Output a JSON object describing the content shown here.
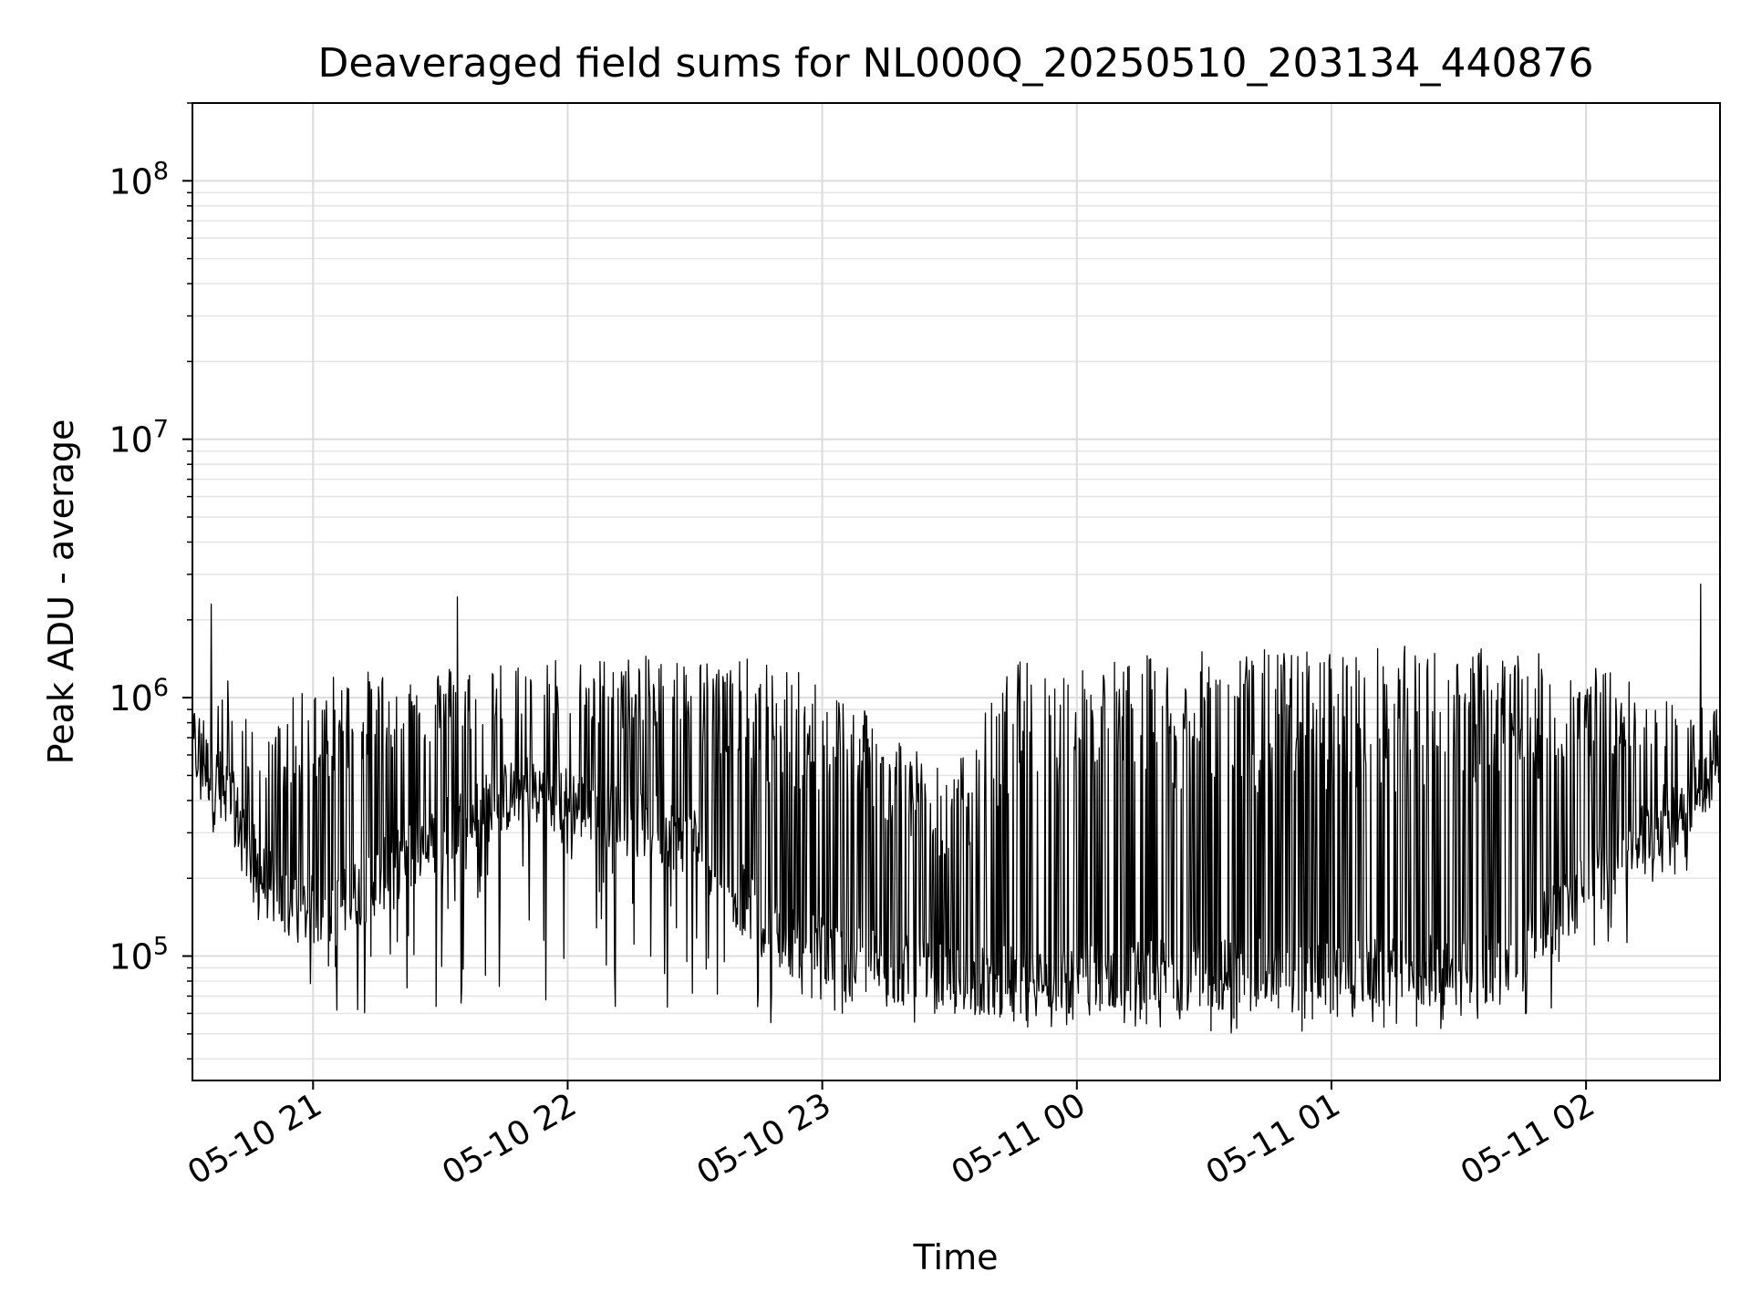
{
  "chart_data": {
    "type": "line",
    "title": "Deaveraged field sums for NL000Q_20250510_203134_440876",
    "xlabel": "Time",
    "ylabel": "Peak ADU - average",
    "x_start": "2025-05-10 20:31:34",
    "x_end": "2025-05-11 02:31:34",
    "xlim": [
      "2025-05-10 20:31:34",
      "2025-05-11 02:31:34"
    ],
    "ylim": [
      33000,
      200000000
    ],
    "yscale": "log",
    "grid": true,
    "line_color": "#000000",
    "x_ticks": [
      {
        "t": "2025-05-10 21:00",
        "label": "05-10 21"
      },
      {
        "t": "2025-05-10 22:00",
        "label": "05-10 22"
      },
      {
        "t": "2025-05-10 23:00",
        "label": "05-10 23"
      },
      {
        "t": "2025-05-11 00:00",
        "label": "05-11 00"
      },
      {
        "t": "2025-05-11 01:00",
        "label": "05-11 01"
      },
      {
        "t": "2025-05-11 02:00",
        "label": "05-11 02"
      }
    ],
    "y_ticks": [
      {
        "v": 100000,
        "base": "10",
        "exp": "5"
      },
      {
        "v": 1000000,
        "base": "10",
        "exp": "6"
      },
      {
        "v": 10000000,
        "base": "10",
        "exp": "7"
      },
      {
        "v": 100000000,
        "base": "10",
        "exp": "8"
      }
    ],
    "series": [
      {
        "envelope": [
          {
            "t": "2025-05-10 20:31",
            "baseline": 650000,
            "peak": 850000,
            "low": 380000
          },
          {
            "t": "2025-05-10 20:40",
            "baseline": 420000,
            "peak": 1200000,
            "low": 230000
          },
          {
            "t": "2025-05-10 20:48",
            "baseline": 200000,
            "peak": 650000,
            "low": 120000
          },
          {
            "t": "2025-05-10 20:55",
            "baseline": 150000,
            "peak": 1000000,
            "low": 90000
          },
          {
            "t": "2025-05-10 21:05",
            "baseline": 150000,
            "peak": 1250000,
            "low": 60000
          },
          {
            "t": "2025-05-10 21:30",
            "baseline": 300000,
            "peak": 1350000,
            "low": 60000
          },
          {
            "t": "2025-05-10 21:50",
            "baseline": 450000,
            "peak": 1450000,
            "low": 70000
          },
          {
            "t": "2025-05-10 22:10",
            "baseline": 350000,
            "peak": 1450000,
            "low": 60000
          },
          {
            "t": "2025-05-10 22:30",
            "baseline": 280000,
            "peak": 1450000,
            "low": 65000
          },
          {
            "t": "2025-05-10 22:48",
            "baseline": 120000,
            "peak": 1400000,
            "low": 55000
          },
          {
            "t": "2025-05-10 23:10",
            "baseline": 95000,
            "peak": 1000000,
            "low": 60000
          },
          {
            "t": "2025-05-10 23:30",
            "baseline": 80000,
            "peak": 500000,
            "low": 52000
          },
          {
            "t": "2025-05-10 23:45",
            "baseline": 80000,
            "peak": 1400000,
            "low": 50000
          },
          {
            "t": "2025-05-11 00:10",
            "baseline": 85000,
            "peak": 1450000,
            "low": 50000
          },
          {
            "t": "2025-05-11 00:40",
            "baseline": 85000,
            "peak": 1550000,
            "low": 50000
          },
          {
            "t": "2025-05-11 01:10",
            "baseline": 85000,
            "peak": 1600000,
            "low": 50000
          },
          {
            "t": "2025-05-11 01:40",
            "baseline": 90000,
            "peak": 1600000,
            "low": 52000
          },
          {
            "t": "2025-05-11 02:05",
            "baseline": 220000,
            "peak": 1300000,
            "low": 70000
          },
          {
            "t": "2025-05-11 02:25",
            "baseline": 420000,
            "peak": 900000,
            "low": 230000
          },
          {
            "t": "2025-05-11 02:31",
            "baseline": 560000,
            "peak": 1000000,
            "low": 500000
          }
        ],
        "spikes": [
          {
            "t": "2025-05-10 20:36",
            "value": 2300000
          },
          {
            "t": "2025-05-10 21:34",
            "value": 2450000
          },
          {
            "t": "2025-05-11 02:27",
            "value": 2750000
          }
        ]
      }
    ]
  }
}
